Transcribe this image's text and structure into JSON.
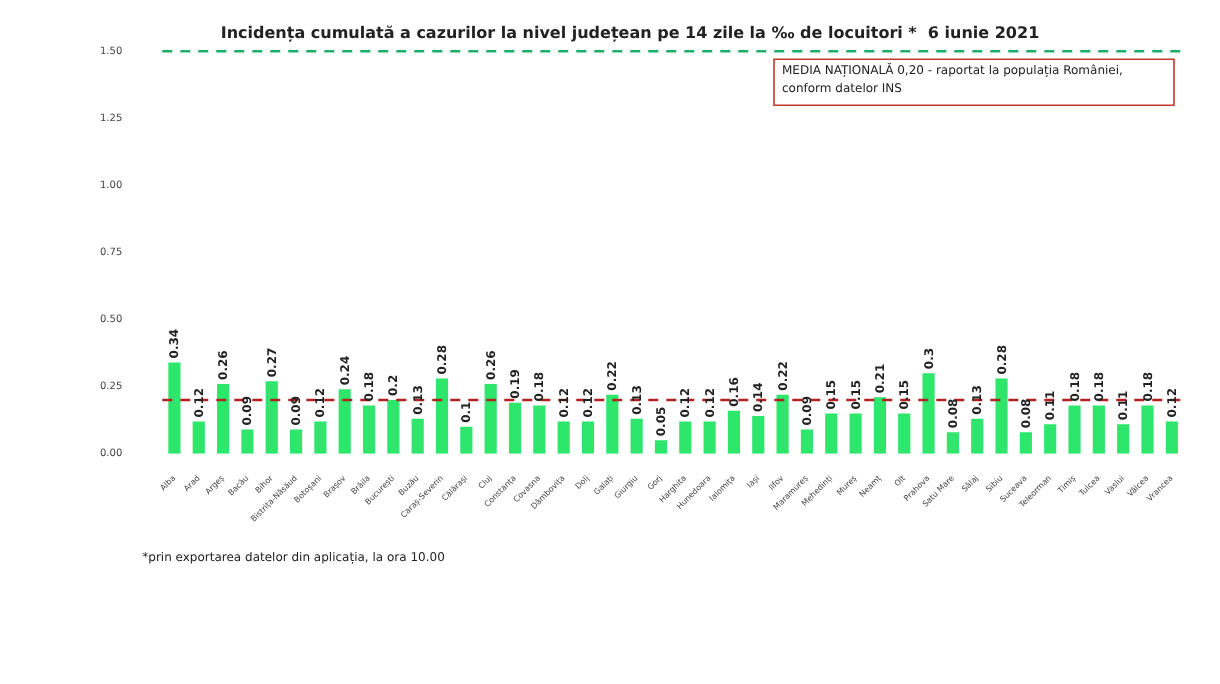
{
  "chart_data": {
    "type": "bar",
    "title": "Incidența cumulată a cazurilor la nivel județean pe 14 zile la ‰ de locuitori *  6 iunie 2021",
    "categories": [
      "Alba",
      "Arad",
      "Argeș",
      "Bacău",
      "Bihor",
      "Bistrița-Năsăud",
      "Botoșani",
      "Brașov",
      "Brăila",
      "București",
      "Buzău",
      "Caraș-Severin",
      "Călărași",
      "Cluj",
      "Constanța",
      "Covasna",
      "Dâmbovița",
      "Dolj",
      "Galați",
      "Giurgiu",
      "Gorj",
      "Harghita",
      "Hunedoara",
      "Ialomița",
      "Iași",
      "Ilfov",
      "Maramureș",
      "Mehedinți",
      "Mureș",
      "Neamț",
      "Olt",
      "Prahova",
      "Satu Mare",
      "Sălaj",
      "Sibiu",
      "Suceava",
      "Teleorman",
      "Timiș",
      "Tulcea",
      "Vaslui",
      "Vâlcea",
      "Vrancea"
    ],
    "values": [
      0.34,
      0.12,
      0.26,
      0.09,
      0.27,
      0.09,
      0.12,
      0.24,
      0.18,
      0.2,
      0.13,
      0.28,
      0.1,
      0.26,
      0.19,
      0.18,
      0.12,
      0.12,
      0.22,
      0.13,
      0.05,
      0.12,
      0.12,
      0.16,
      0.14,
      0.22,
      0.09,
      0.15,
      0.15,
      0.21,
      0.15,
      0.3,
      0.08,
      0.13,
      0.28,
      0.08,
      0.11,
      0.18,
      0.18,
      0.11,
      0.18,
      0.12
    ],
    "color": "#2ee66b",
    "data_labels": true,
    "ylim": [
      0,
      1.5
    ],
    "yticks": [
      {
        "value": 0,
        "label": "0.00"
      },
      {
        "value": 0.25,
        "label": "0.25"
      },
      {
        "value": 0.5,
        "label": "0.50"
      },
      {
        "value": 0.75,
        "label": "0.75"
      },
      {
        "value": 1,
        "label": "1.00"
      },
      {
        "value": 1.25,
        "label": "1.25"
      },
      {
        "value": 1.5,
        "label": "1.50"
      }
    ],
    "ref_lines": [
      {
        "axis": "y",
        "value": 1.5,
        "color": "#1fae6a",
        "line_style": "dashed"
      },
      {
        "axis": "y",
        "value": 0.2,
        "color": "#b22222",
        "line_style": "dashed"
      }
    ],
    "annotations": [
      "MEDIA NAȚIONALĂ 0,20 - raportat la populația României, conform datelor INS",
      "*prin exportarea datelor din aplicația, la ora 10.00"
    ]
  }
}
